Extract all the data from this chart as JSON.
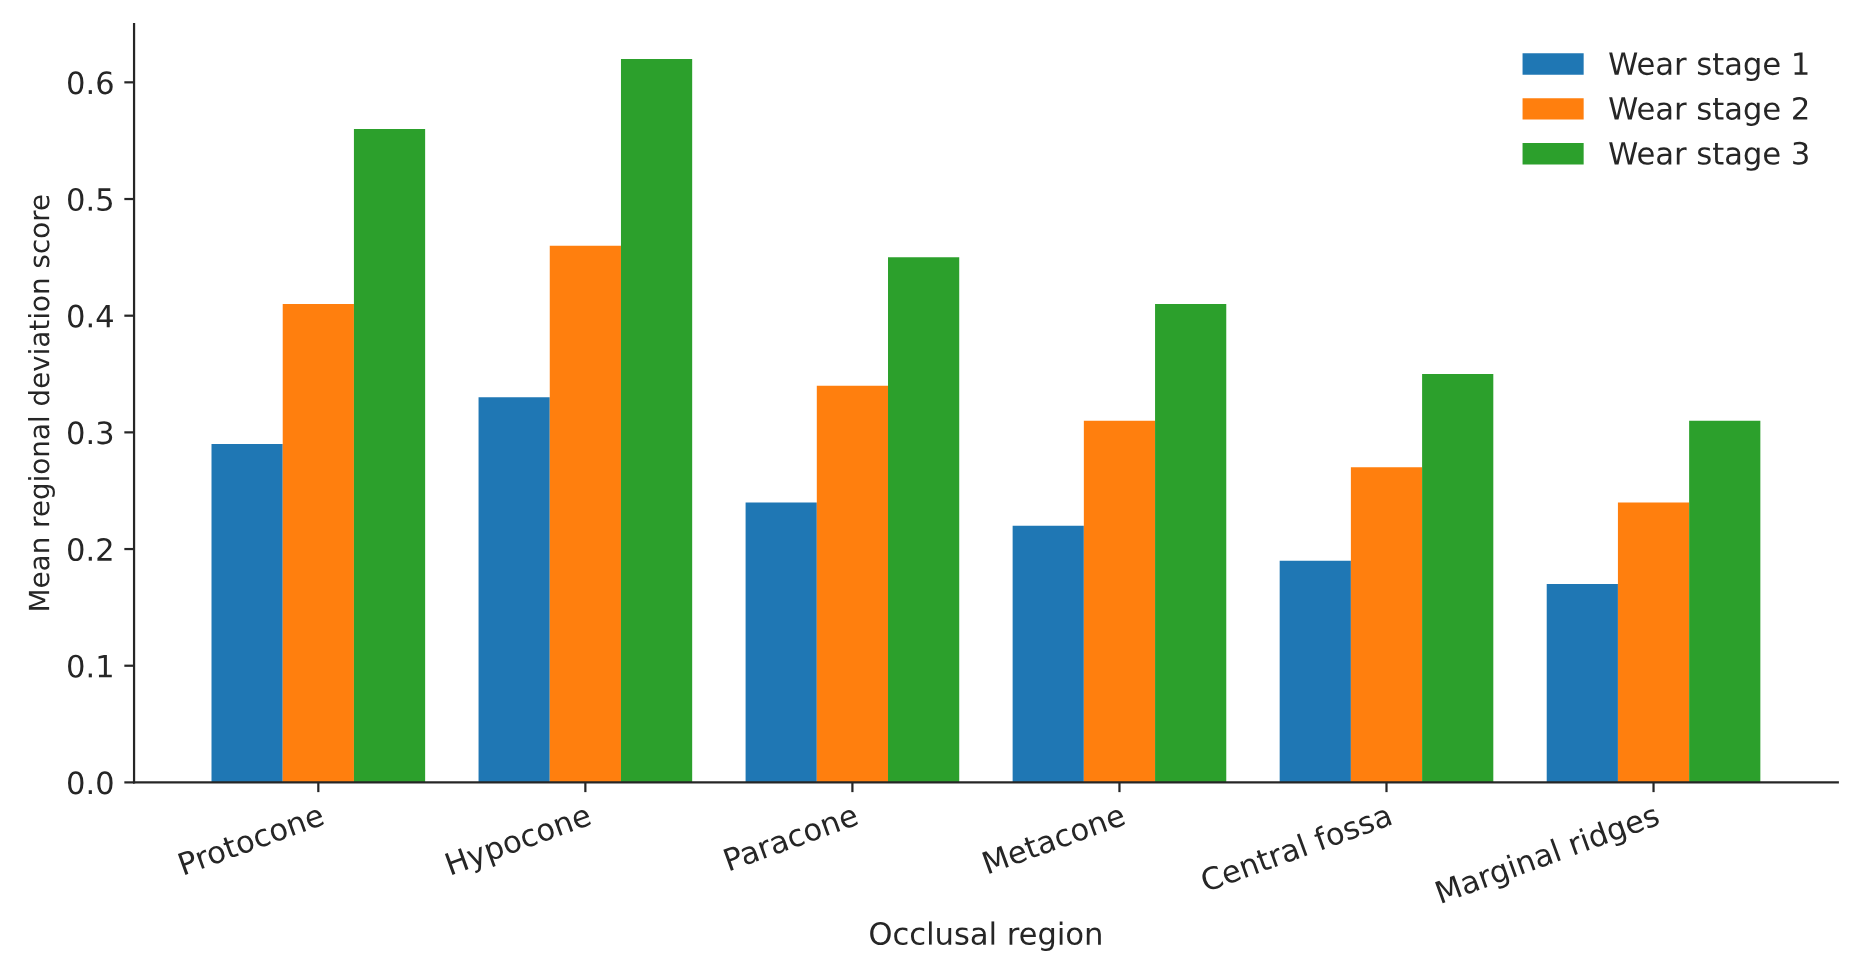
{
  "chart_data": {
    "type": "bar",
    "xlabel": "Occlusal region",
    "ylabel": "Mean regional deviation score",
    "categories": [
      "Protocone",
      "Hypocone",
      "Paracone",
      "Metacone",
      "Central fossa",
      "Marginal ridges"
    ],
    "series": [
      {
        "name": "Wear stage 1",
        "color": "#1f77b4",
        "values": [
          0.29,
          0.33,
          0.24,
          0.22,
          0.19,
          0.17
        ]
      },
      {
        "name": "Wear stage 2",
        "color": "#ff7f0e",
        "values": [
          0.41,
          0.46,
          0.34,
          0.31,
          0.27,
          0.24
        ]
      },
      {
        "name": "Wear stage 3",
        "color": "#2ca02c",
        "values": [
          0.56,
          0.62,
          0.45,
          0.41,
          0.35,
          0.31
        ]
      }
    ],
    "ylim": [
      0,
      0.65
    ],
    "yticks": [
      {
        "value": 0,
        "label": "0.0"
      },
      0.1,
      0.2,
      0.3,
      0.4,
      0.5,
      0.6
    ],
    "legend": "top right",
    "grid": false
  }
}
